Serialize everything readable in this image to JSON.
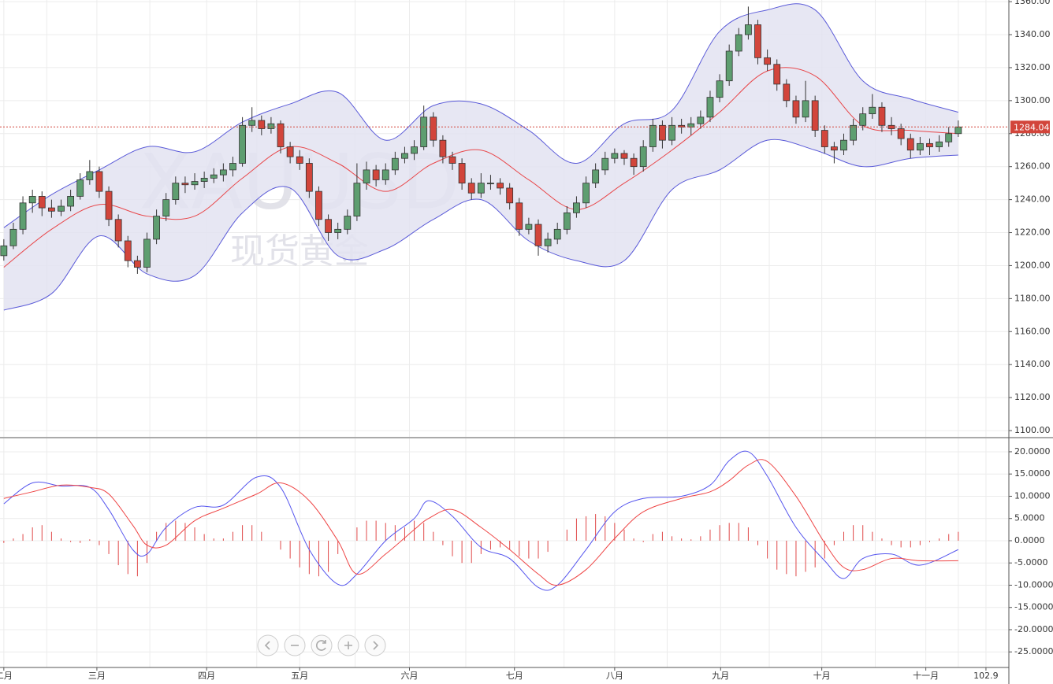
{
  "chart_data": [
    {
      "type": "candlestick",
      "watermark": "XAUUSD",
      "watermark_subtitle": "现货黄金",
      "xlim": [
        -0.4,
        105.3
      ],
      "ylim": [
        1096.2,
        1361
      ],
      "yticks": [
        {
          "value": 1100,
          "label": "1100.00"
        },
        {
          "value": 1120,
          "label": "1120.00"
        },
        {
          "value": 1140,
          "label": "1140.00"
        },
        {
          "value": 1160,
          "label": "1160.00"
        },
        {
          "value": 1180,
          "label": "1180.00"
        },
        {
          "value": 1200,
          "label": "1200.00"
        },
        {
          "value": 1220,
          "label": "1220.00"
        },
        {
          "value": 1240,
          "label": "1240.00"
        },
        {
          "value": 1260,
          "label": "1260.00"
        },
        {
          "value": 1280,
          "label": "1280.00"
        },
        {
          "value": 1300,
          "label": "1300.00"
        },
        {
          "value": 1320,
          "label": "1320.00"
        },
        {
          "value": 1340,
          "label": "1340.00"
        },
        {
          "value": 1360,
          "label": "1360.00"
        }
      ],
      "grid": true,
      "up_color": "#5e9e70",
      "down_color": "#d2453b",
      "x": [
        0,
        1,
        2,
        3,
        4,
        5,
        6,
        7,
        8,
        9,
        10,
        11,
        12,
        13,
        14,
        15,
        16,
        17,
        18,
        19,
        20,
        21,
        22,
        23,
        24,
        25,
        26,
        27,
        28,
        29,
        30,
        31,
        32,
        33,
        34,
        35,
        36,
        37,
        38,
        39,
        40,
        41,
        42,
        43,
        44,
        45,
        46,
        47,
        48,
        49,
        50,
        51,
        52,
        53,
        54,
        55,
        56,
        57,
        58,
        59,
        60,
        61,
        62,
        63,
        64,
        65,
        66,
        67,
        68,
        69,
        70,
        71,
        72,
        73,
        74,
        75,
        76,
        77,
        78,
        79,
        80,
        81,
        82,
        83,
        84,
        85,
        86,
        87,
        88,
        89,
        90,
        91,
        92,
        93,
        94,
        95,
        96,
        97,
        98,
        99,
        100
      ],
      "open": [
        1206,
        1212,
        1222,
        1238,
        1242,
        1235,
        1233,
        1236,
        1242,
        1252,
        1257,
        1245,
        1228,
        1215,
        1203,
        1199,
        1216,
        1230,
        1240,
        1250,
        1249,
        1251,
        1253,
        1255,
        1258,
        1262,
        1285,
        1288,
        1283,
        1286,
        1272,
        1266,
        1262,
        1245,
        1228,
        1220,
        1222,
        1230,
        1250,
        1258,
        1252,
        1258,
        1265,
        1268,
        1272,
        1290,
        1276,
        1266,
        1262,
        1250,
        1244,
        1250,
        1250,
        1247,
        1238,
        1222,
        1225,
        1212,
        1216,
        1222,
        1232,
        1238,
        1250,
        1258,
        1265,
        1268,
        1265,
        1260,
        1272,
        1285,
        1276,
        1285,
        1284,
        1286,
        1290,
        1302,
        1312,
        1330,
        1340,
        1346,
        1326,
        1322,
        1310,
        1300,
        1290,
        1300,
        1282,
        1272,
        1270,
        1276,
        1285,
        1292,
        1296,
        1285,
        1283,
        1277,
        1270,
        1274,
        1272,
        1275,
        1280
      ],
      "high": [
        1216,
        1226,
        1242,
        1246,
        1245,
        1240,
        1240,
        1246,
        1256,
        1264,
        1260,
        1248,
        1231,
        1218,
        1206,
        1220,
        1234,
        1244,
        1254,
        1254,
        1256,
        1257,
        1259,
        1262,
        1266,
        1290,
        1296,
        1291,
        1290,
        1288,
        1275,
        1270,
        1265,
        1248,
        1231,
        1226,
        1234,
        1262,
        1263,
        1261,
        1262,
        1269,
        1272,
        1276,
        1297,
        1293,
        1279,
        1269,
        1265,
        1253,
        1256,
        1255,
        1253,
        1250,
        1241,
        1229,
        1228,
        1220,
        1226,
        1236,
        1242,
        1254,
        1262,
        1269,
        1271,
        1270,
        1268,
        1276,
        1289,
        1288,
        1290,
        1289,
        1290,
        1294,
        1306,
        1316,
        1334,
        1344,
        1357,
        1349,
        1331,
        1325,
        1313,
        1303,
        1312,
        1303,
        1285,
        1275,
        1280,
        1289,
        1296,
        1304,
        1299,
        1290,
        1286,
        1280,
        1278,
        1277,
        1279,
        1284,
        1288
      ],
      "low": [
        1203,
        1210,
        1219,
        1232,
        1230,
        1229,
        1230,
        1233,
        1240,
        1249,
        1241,
        1224,
        1211,
        1199,
        1195,
        1196,
        1213,
        1227,
        1237,
        1244,
        1246,
        1247,
        1250,
        1251,
        1254,
        1260,
        1281,
        1279,
        1280,
        1268,
        1262,
        1258,
        1241,
        1224,
        1215,
        1216,
        1219,
        1227,
        1246,
        1248,
        1249,
        1255,
        1262,
        1264,
        1270,
        1272,
        1262,
        1258,
        1246,
        1240,
        1241,
        1246,
        1243,
        1234,
        1218,
        1219,
        1206,
        1208,
        1213,
        1219,
        1229,
        1235,
        1247,
        1255,
        1262,
        1261,
        1255,
        1257,
        1269,
        1271,
        1273,
        1280,
        1279,
        1283,
        1287,
        1299,
        1309,
        1327,
        1337,
        1322,
        1318,
        1306,
        1296,
        1286,
        1287,
        1278,
        1268,
        1262,
        1267,
        1273,
        1282,
        1289,
        1281,
        1279,
        1273,
        1265,
        1267,
        1267,
        1269,
        1272,
        1278
      ],
      "close": [
        1212,
        1222,
        1238,
        1242,
        1235,
        1233,
        1236,
        1242,
        1252,
        1257,
        1245,
        1228,
        1215,
        1203,
        1199,
        1216,
        1230,
        1240,
        1250,
        1249,
        1251,
        1253,
        1255,
        1258,
        1262,
        1285,
        1288,
        1283,
        1286,
        1272,
        1266,
        1262,
        1245,
        1228,
        1220,
        1222,
        1230,
        1250,
        1258,
        1252,
        1258,
        1265,
        1268,
        1272,
        1290,
        1276,
        1266,
        1262,
        1250,
        1244,
        1250,
        1250,
        1247,
        1238,
        1222,
        1225,
        1212,
        1216,
        1222,
        1232,
        1238,
        1250,
        1258,
        1265,
        1268,
        1265,
        1260,
        1272,
        1285,
        1276,
        1285,
        1284,
        1286,
        1290,
        1302,
        1312,
        1330,
        1340,
        1346,
        1326,
        1322,
        1310,
        1300,
        1290,
        1300,
        1282,
        1272,
        1270,
        1276,
        1285,
        1292,
        1296,
        1285,
        1283,
        1277,
        1270,
        1274,
        1272,
        1275,
        1280,
        1284.04
      ],
      "bands": {
        "band_color": "#5a5ad8",
        "fill": "#e3e3f1",
        "middle_color": "#e8474a",
        "x": [
          0,
          5,
          10,
          15,
          20,
          25,
          30,
          35,
          40,
          45,
          50,
          55,
          60,
          65,
          70,
          75,
          80,
          85,
          90,
          95,
          100
        ],
        "upper": [
          1223,
          1243,
          1258,
          1272,
          1269,
          1287,
          1298,
          1305,
          1276,
          1297,
          1298,
          1282,
          1262,
          1286,
          1294,
          1342,
          1355,
          1355,
          1312,
          1301,
          1293
        ],
        "middle": [
          1199,
          1222,
          1237,
          1230,
          1230,
          1253,
          1272,
          1262,
          1245,
          1262,
          1270,
          1252,
          1234,
          1250,
          1270,
          1293,
          1318,
          1315,
          1285,
          1282,
          1280
        ],
        "lower": [
          1173,
          1183,
          1218,
          1195,
          1194,
          1232,
          1247,
          1206,
          1210,
          1228,
          1240,
          1215,
          1203,
          1203,
          1246,
          1258,
          1276,
          1270,
          1260,
          1265,
          1267
        ]
      },
      "last_price": 1284.04,
      "last_price_color": "#d2453b"
    },
    {
      "type": "macd",
      "xlim": [
        -0.4,
        105.3
      ],
      "ylim": [
        -28.5,
        23
      ],
      "yticks": [
        {
          "value": 20,
          "label": "20.0000"
        },
        {
          "value": 15,
          "label": "15.0000"
        },
        {
          "value": 10,
          "label": "10.0000"
        },
        {
          "value": 5,
          "label": "5.0000"
        },
        {
          "value": 0,
          "label": "0.0000"
        },
        {
          "value": -5,
          "label": "-5.0000"
        },
        {
          "value": -10,
          "label": "-10.0000"
        },
        {
          "value": -15,
          "label": "-15.0000"
        },
        {
          "value": -20,
          "label": "-20.0000"
        },
        {
          "value": -25,
          "label": "-25.0000"
        }
      ],
      "xticks": [
        {
          "value": 0,
          "label": "二月"
        },
        {
          "value": 9.75,
          "label": "三月"
        },
        {
          "value": 21.25,
          "label": "四月"
        },
        {
          "value": 31,
          "label": "五月"
        },
        {
          "value": 42.5,
          "label": "六月"
        },
        {
          "value": 53.5,
          "label": "七月"
        },
        {
          "value": 64,
          "label": "八月"
        },
        {
          "value": 75.1,
          "label": "九月"
        },
        {
          "value": 85.7,
          "label": "十月"
        },
        {
          "value": 96.6,
          "label": "十一月"
        },
        102.9
      ],
      "minor_xgrid": [
        4.5,
        15.3,
        26.5,
        36.8,
        48.4,
        58.7,
        69.5,
        80.2,
        91.3,
        100
      ],
      "grid": true,
      "lines": [
        {
          "color": "#5555ee",
          "x": [
            0,
            3,
            6,
            9,
            11,
            13.5,
            15,
            17,
            20,
            23,
            26.5,
            29,
            32,
            35,
            37,
            40,
            43,
            44.5,
            47,
            50,
            53,
            56,
            58,
            61,
            64,
            67,
            71,
            74,
            76,
            78,
            80,
            83,
            86,
            88,
            90,
            93,
            96,
            100
          ],
          "values": [
            8.3,
            13,
            12.3,
            12,
            7,
            -2,
            -3,
            3,
            7.5,
            8,
            14.3,
            12,
            -2,
            -9.8,
            -7.5,
            0,
            5,
            9,
            5.5,
            -1.5,
            -4,
            -10.5,
            -10,
            -2,
            6.5,
            9.5,
            10,
            12.5,
            18,
            20,
            14.5,
            3,
            -4.5,
            -8.5,
            -4,
            -3,
            -5.5,
            -2
          ]
        },
        {
          "color": "#ee4444",
          "x": [
            0,
            3,
            6,
            9,
            11,
            13.5,
            15,
            17,
            20,
            23,
            26.5,
            29,
            32,
            35,
            37,
            40,
            43,
            44.5,
            47,
            50,
            53,
            56,
            58,
            61,
            64,
            67,
            71,
            74,
            76,
            78,
            80,
            83,
            86,
            88,
            90,
            93,
            96,
            100
          ],
          "values": [
            9.5,
            11,
            12.5,
            12,
            10.5,
            3.5,
            -1,
            -1,
            4.5,
            7.3,
            10.5,
            13,
            9,
            0,
            -7.5,
            -3,
            2.5,
            5,
            7,
            3,
            -2,
            -7.5,
            -10,
            -6.5,
            0.5,
            6.5,
            9.5,
            11,
            13.5,
            17,
            17.8,
            10,
            -0.5,
            -6,
            -6.5,
            -4,
            -4.5,
            -4.5
          ]
        }
      ],
      "histogram": {
        "color": "#e04848",
        "x": [
          0,
          1,
          2,
          3,
          4,
          5,
          6,
          7,
          8,
          9,
          10,
          11,
          12,
          13,
          14,
          15,
          16,
          17,
          18,
          19,
          20,
          21,
          22,
          23,
          24,
          25,
          26,
          27,
          28,
          29,
          30,
          31,
          32,
          33,
          34,
          35,
          36,
          37,
          38,
          39,
          40,
          41,
          42,
          43,
          44,
          45,
          46,
          47,
          48,
          49,
          50,
          51,
          52,
          53,
          54,
          55,
          56,
          57,
          58,
          59,
          60,
          61,
          62,
          63,
          64,
          65,
          66,
          67,
          68,
          69,
          70,
          71,
          72,
          73,
          74,
          75,
          76,
          77,
          78,
          79,
          80,
          81,
          82,
          83,
          84,
          85,
          86,
          87,
          88,
          89,
          90,
          91,
          92,
          93,
          94,
          95,
          96,
          97,
          98,
          99,
          100
        ],
        "values": [
          -0.5,
          0.5,
          1.5,
          3,
          3.5,
          2,
          0.5,
          -0.3,
          -0.5,
          0.3,
          -1,
          -3,
          -5.5,
          -7.5,
          -8,
          -5,
          2,
          4,
          4.5,
          4,
          3,
          1.5,
          0.5,
          0.5,
          2,
          3.5,
          3.5,
          2,
          0,
          -2,
          -4,
          -6,
          -7.5,
          -8,
          -7,
          -3,
          0,
          3,
          4.5,
          4.5,
          4,
          3.5,
          3,
          4.5,
          4,
          2,
          -1,
          -3.5,
          -5,
          -5,
          -3,
          -2,
          -1.5,
          -2,
          -3.5,
          -4,
          -4,
          -2.5,
          0,
          2.5,
          5,
          5.5,
          6,
          5.5,
          4,
          2.5,
          0.5,
          -0.3,
          1.5,
          2,
          1,
          0.5,
          0.3,
          1,
          2.5,
          3.5,
          4,
          4,
          3,
          -1,
          -4,
          -6.5,
          -7.5,
          -8,
          -7,
          -6,
          -4,
          -1,
          2,
          3.5,
          3.5,
          2,
          0.5,
          -1,
          -1.5,
          -1.5,
          -1,
          -0.3,
          0.5,
          1.5,
          2
        ]
      }
    }
  ]
}
